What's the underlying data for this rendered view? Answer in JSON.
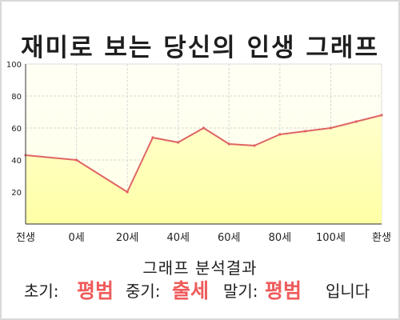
{
  "page": {
    "title": "재미로 보는 당신의 인생 그래프"
  },
  "chart_data": {
    "type": "area",
    "title": "재미로 보는 당신의 인생 그래프",
    "xlabel": "",
    "ylabel": "",
    "x_tick_labels": [
      "전생",
      "0세",
      "20세",
      "40세",
      "60세",
      "80세",
      "100세",
      "환생"
    ],
    "y_ticks": [
      20,
      40,
      60,
      80,
      100
    ],
    "xlim": [
      -20,
      120
    ],
    "ylim": [
      0,
      100
    ],
    "grid": true,
    "legend": "none",
    "series": [
      {
        "points": [
          [
            -20,
            43
          ],
          [
            0,
            40
          ],
          [
            20,
            20
          ],
          [
            30,
            54
          ],
          [
            40,
            51
          ],
          [
            50,
            60
          ],
          [
            60,
            50
          ],
          [
            70,
            49
          ],
          [
            80,
            56
          ],
          [
            90,
            58
          ],
          [
            100,
            60
          ],
          [
            110,
            64
          ],
          [
            120,
            68
          ]
        ]
      }
    ],
    "colors": {
      "line": "#e06464",
      "fill": "#ffffc8",
      "plot_background": "#fffff0"
    }
  },
  "results": {
    "title": "그래프 분석결과",
    "early_label": "초기:",
    "early_value": "평범",
    "middle_label": "중기:",
    "middle_value": "출세",
    "late_label": "말기:",
    "late_value": "평범",
    "ending": "입니다",
    "accent_color": "#ef5b5b"
  }
}
